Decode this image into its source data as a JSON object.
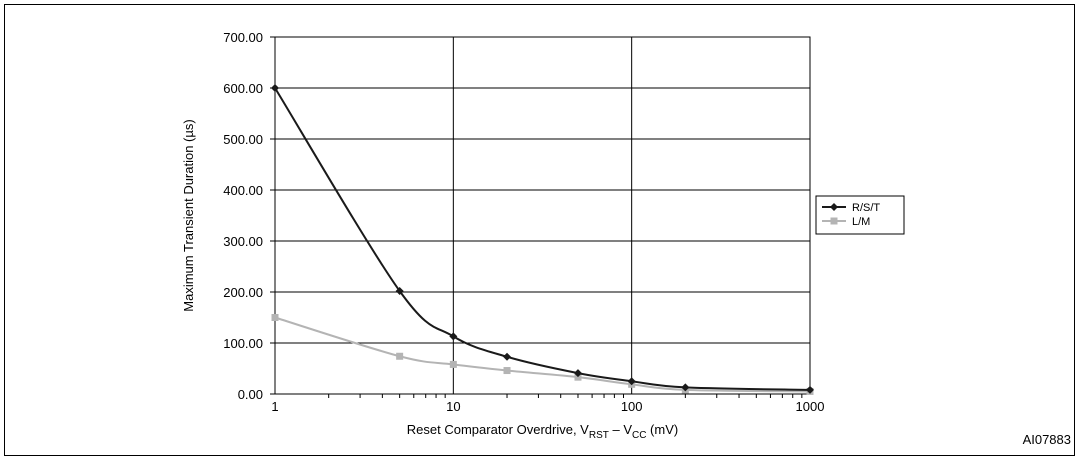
{
  "chart_data": {
    "type": "line",
    "x_scale": "log",
    "xlim": [
      1,
      1000
    ],
    "ylim": [
      0,
      700
    ],
    "x_ticks": [
      1,
      10,
      100,
      1000
    ],
    "x_tick_labels": [
      "1",
      "10",
      "100",
      "1000"
    ],
    "y_ticks": [
      0,
      100,
      200,
      300,
      400,
      500,
      600,
      700
    ],
    "y_tick_labels": [
      "0.00",
      "100.00",
      "200.00",
      "300.00",
      "400.00",
      "500.00",
      "600.00",
      "700.00"
    ],
    "xlabel": {
      "prefix": "Reset Comparator Overdrive,  V",
      "sub1": "RST",
      "mid": " – V",
      "sub2": "CC",
      "suffix": " (mV)"
    },
    "ylabel": "Maximum Transient Duration (µs)",
    "grid": true,
    "legend_position": "right",
    "series": [
      {
        "name": "R/S/T",
        "color": "#1a1a1a",
        "marker": "diamond",
        "x": [
          1,
          5,
          10,
          20,
          50,
          100,
          200,
          1000
        ],
        "y": [
          600,
          202,
          113,
          73,
          41,
          25,
          13,
          8
        ]
      },
      {
        "name": "L/M",
        "color": "#b4b4b4",
        "marker": "square",
        "x": [
          1,
          5,
          10,
          20,
          50,
          100,
          200,
          1000
        ],
        "y": [
          150,
          74,
          58,
          46,
          33,
          19,
          8,
          5
        ]
      }
    ]
  },
  "figure_code": "AI07883"
}
